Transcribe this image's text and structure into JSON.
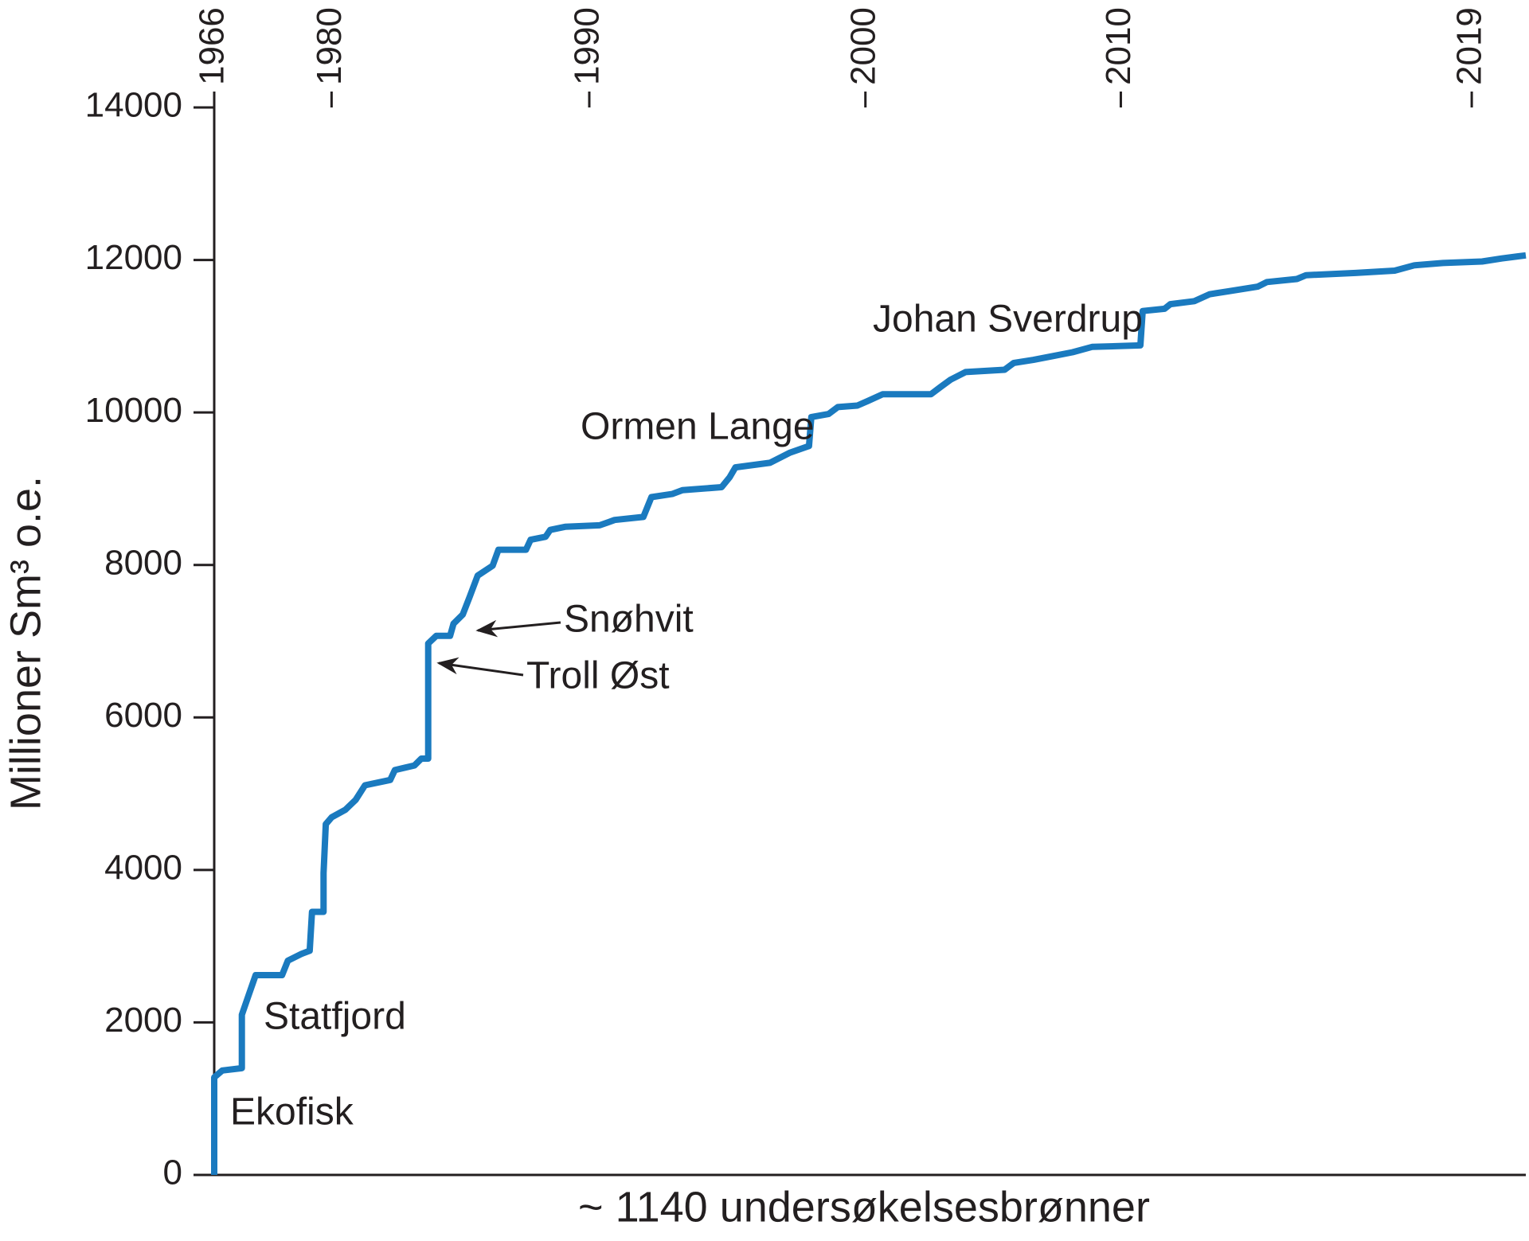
{
  "chart_data": {
    "type": "line",
    "x_label": "~ 1140 undersøkelsesbrønner",
    "y_label": "Millioner Sm³ o.e.",
    "xlim": [
      0,
      1140
    ],
    "ylim": [
      0,
      14000
    ],
    "yticks": [
      0,
      2000,
      4000,
      6000,
      8000,
      10000,
      12000,
      14000
    ],
    "top_xticks": [
      {
        "value": 0,
        "label": "1966"
      },
      {
        "value": 102,
        "label": "1980"
      },
      {
        "value": 326,
        "label": "1990"
      },
      {
        "value": 566,
        "label": "2000"
      },
      {
        "value": 788,
        "label": "2010"
      },
      {
        "value": 1093,
        "label": "2019"
      }
    ],
    "x": [
      0,
      0,
      7,
      24,
      24,
      30,
      36,
      59,
      64,
      76,
      83,
      85,
      95,
      95,
      97,
      102,
      114,
      123,
      131,
      153,
      157,
      174,
      180,
      186,
      186,
      193,
      205,
      208,
      216,
      222,
      229,
      242,
      247,
      271,
      275,
      288,
      292,
      305,
      335,
      348,
      373,
      380,
      398,
      407,
      441,
      448,
      453,
      483,
      500,
      517,
      519,
      534,
      542,
      559,
      568,
      581,
      623,
      631,
      640,
      653,
      687,
      695,
      712,
      729,
      746,
      763,
      805,
      807,
      826,
      831,
      852,
      865,
      882,
      907,
      915,
      941,
      949,
      992,
      1026,
      1043,
      1068,
      1102,
      1119,
      1140
    ],
    "series": [
      {
        "color": "#1a7abf",
        "values": [
          0,
          1280,
          1370,
          1400,
          2100,
          2360,
          2620,
          2620,
          2810,
          2900,
          2940,
          3450,
          3450,
          3960,
          4600,
          4690,
          4790,
          4920,
          5110,
          5180,
          5310,
          5370,
          5460,
          5460,
          6970,
          7070,
          7070,
          7230,
          7350,
          7580,
          7860,
          7990,
          8200,
          8200,
          8330,
          8370,
          8460,
          8500,
          8520,
          8590,
          8630,
          8890,
          8930,
          8980,
          9020,
          9150,
          9280,
          9340,
          9470,
          9560,
          9940,
          9980,
          10070,
          10090,
          10150,
          10240,
          10240,
          10330,
          10430,
          10530,
          10560,
          10650,
          10690,
          10740,
          10790,
          10860,
          10880,
          11330,
          11360,
          11420,
          11460,
          11550,
          11590,
          11650,
          11710,
          11750,
          11800,
          11830,
          11860,
          11930,
          11960,
          11980,
          12020,
          12060
        ]
      }
    ],
    "annotations": [
      "Ekofisk",
      "Statfjord",
      "Troll Øst",
      "Snøhvit",
      "Ormen Lange",
      "Johan Sverdrup"
    ]
  }
}
